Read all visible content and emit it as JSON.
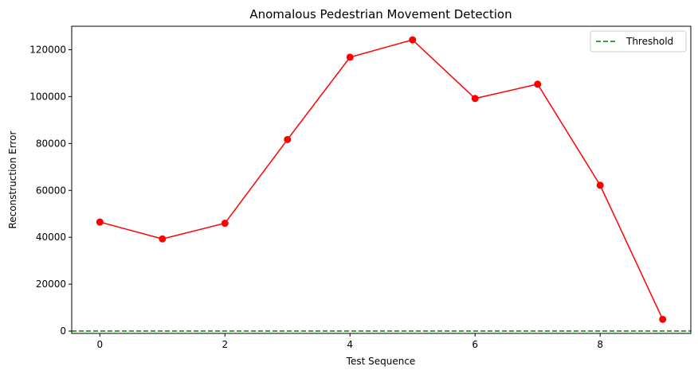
{
  "chart_data": {
    "type": "line",
    "title": "Anomalous Pedestrian Movement Detection",
    "xlabel": "Test Sequence",
    "ylabel": "Reconstruction Error",
    "xlim": [
      -0.45,
      9.45
    ],
    "ylim": [
      -1000,
      130000
    ],
    "xticks": [
      0,
      2,
      4,
      6,
      8
    ],
    "yticks": [
      0,
      20000,
      40000,
      60000,
      80000,
      100000,
      120000
    ],
    "grid": false,
    "legend_position": "top-right",
    "series": [
      {
        "style": "line-marker",
        "color": "#ff0000",
        "x": [
          0,
          1,
          2,
          3,
          4,
          5,
          6,
          7,
          8,
          9
        ],
        "y": [
          46500,
          39300,
          46000,
          81700,
          116800,
          124200,
          99200,
          105300,
          62200,
          5000
        ]
      }
    ],
    "threshold": {
      "name": "Threshold",
      "value": 0,
      "color": "#008000",
      "style": "dashed"
    }
  }
}
